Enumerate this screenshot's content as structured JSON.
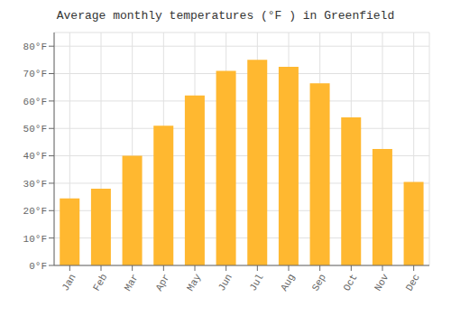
{
  "chart_data": {
    "type": "bar",
    "title": "Average monthly temperatures (°F ) in Greenfield",
    "categories": [
      "Jan",
      "Feb",
      "Mar",
      "Apr",
      "May",
      "Jun",
      "Jul",
      "Aug",
      "Sep",
      "Oct",
      "Nov",
      "Dec"
    ],
    "values": [
      24.5,
      28,
      40,
      51,
      62,
      71,
      75,
      72.5,
      66.5,
      54,
      42.5,
      30.5
    ],
    "color": "#FFB830",
    "ylim": [
      0,
      85
    ],
    "yticks": [
      {
        "value": 0,
        "label": "0°F"
      },
      {
        "value": 10,
        "label": "10°F"
      },
      {
        "value": 20,
        "label": "20°F"
      },
      {
        "value": 30,
        "label": "30°F"
      },
      {
        "value": 40,
        "label": "40°F"
      },
      {
        "value": 50,
        "label": "50°F"
      },
      {
        "value": 60,
        "label": "60°F"
      },
      {
        "value": 70,
        "label": "70°F"
      },
      {
        "value": 80,
        "label": "80°F"
      }
    ],
    "grid": true
  }
}
